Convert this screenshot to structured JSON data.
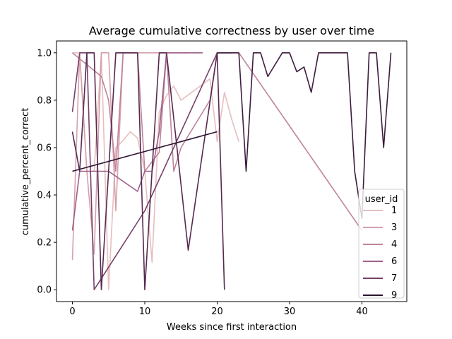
{
  "chart_data": {
    "type": "line",
    "title": "Average cumulative correctness by user over time",
    "xlabel": "Weeks since first interaction",
    "ylabel": "cumulative_percent_correct",
    "xlim": [
      -2.2,
      46.2
    ],
    "ylim": [
      -0.05,
      1.05
    ],
    "x_ticks": [
      0,
      10,
      20,
      30,
      40
    ],
    "y_ticks": [
      0.0,
      0.2,
      0.4,
      0.6,
      0.8,
      1.0
    ],
    "legend": {
      "title": "user_id",
      "placement": "lower-right"
    },
    "grid": false,
    "series": [
      {
        "name": "1",
        "color": "#e6bfbf",
        "points": [
          [
            0,
            1.0
          ],
          [
            1,
            1.0
          ],
          [
            2,
            0.5
          ],
          [
            3,
            0.5
          ],
          [
            4,
            1.0
          ],
          [
            5,
            0.0
          ],
          [
            6,
            0.6
          ],
          [
            7,
            0.63
          ],
          [
            8,
            0.667
          ],
          [
            9,
            0.64
          ],
          [
            10,
            0.5
          ],
          [
            11,
            0.115
          ],
          [
            12,
            0.75
          ],
          [
            13,
            0.82
          ],
          [
            14,
            0.86
          ],
          [
            15,
            0.8
          ],
          [
            19,
            0.89
          ],
          [
            20,
            0.625
          ],
          [
            21,
            0.833
          ],
          [
            22,
            0.72
          ],
          [
            23,
            0.625
          ]
        ]
      },
      {
        "name": "3",
        "color": "#d4a0ab",
        "points": [
          [
            0,
            0.125
          ],
          [
            1,
            1.0
          ],
          [
            2,
            0.5
          ],
          [
            3,
            0.15
          ],
          [
            4,
            1.0
          ],
          [
            5,
            1.0
          ],
          [
            6,
            0.333
          ],
          [
            7,
            1.0
          ],
          [
            8,
            1.0
          ],
          [
            14,
            1.0
          ],
          [
            16,
            1.0
          ]
        ]
      },
      {
        "name": "4",
        "color": "#bf839b",
        "points": [
          [
            0,
            1.0
          ],
          [
            4,
            0.9
          ],
          [
            5,
            0.8
          ],
          [
            6,
            0.5
          ],
          [
            7,
            1.0
          ],
          [
            8,
            1.0
          ],
          [
            9,
            1.0
          ],
          [
            10,
            0.5
          ],
          [
            12,
            0.58
          ],
          [
            13,
            1.0
          ],
          [
            14,
            0.5
          ],
          [
            15,
            0.6
          ],
          [
            19,
            0.8
          ],
          [
            20,
            1.0
          ],
          [
            23,
            1.0
          ],
          [
            40,
            0.25
          ]
        ]
      },
      {
        "name": "6",
        "color": "#9e6088",
        "points": [
          [
            0,
            0.25
          ],
          [
            1,
            0.5
          ],
          [
            2,
            0.5
          ],
          [
            3,
            0.5
          ],
          [
            4,
            0.5
          ],
          [
            5,
            0.5
          ],
          [
            9,
            0.415
          ],
          [
            10,
            0.5
          ],
          [
            11,
            0.5
          ],
          [
            12,
            0.667
          ],
          [
            13,
            1.0
          ],
          [
            14,
            1.0
          ],
          [
            18,
            1.0
          ]
        ]
      },
      {
        "name": "7",
        "color": "#76406a",
        "points": [
          [
            0,
            0.75
          ],
          [
            1,
            1.0
          ],
          [
            2,
            1.0
          ],
          [
            3,
            0.0
          ],
          [
            10,
            0.333
          ],
          [
            20,
            1.0
          ],
          [
            21,
            1.0
          ],
          [
            22,
            1.0
          ]
        ]
      },
      {
        "name": "",
        "color": "#56294f",
        "points": [
          [
            0,
            0.667
          ],
          [
            1,
            0.5
          ],
          [
            2,
            1.0
          ],
          [
            3,
            1.0
          ],
          [
            4,
            0.0
          ],
          [
            6,
            1.0
          ],
          [
            8,
            1.0
          ],
          [
            9,
            1.0
          ],
          [
            10,
            0.0
          ],
          [
            12,
            1.0
          ],
          [
            13,
            1.0
          ],
          [
            16,
            0.167
          ],
          [
            20,
            1.0
          ],
          [
            21,
            0.0
          ]
        ]
      },
      {
        "name": "",
        "color": "#3d1c3d",
        "points": [
          [
            20,
            1.0
          ],
          [
            22,
            1.0
          ],
          [
            23,
            1.0
          ],
          [
            24,
            0.5
          ],
          [
            25,
            1.0
          ],
          [
            26,
            1.0
          ],
          [
            27,
            0.9
          ],
          [
            29,
            1.0
          ],
          [
            30,
            1.0
          ],
          [
            31,
            0.92
          ],
          [
            32,
            0.94
          ],
          [
            33,
            0.833
          ],
          [
            34,
            1.0
          ],
          [
            38,
            1.0
          ],
          [
            39,
            0.5
          ],
          [
            40,
            0.3
          ],
          [
            41,
            1.0
          ],
          [
            42,
            1.0
          ],
          [
            43,
            0.6
          ],
          [
            44,
            1.0
          ]
        ]
      },
      {
        "name": "9",
        "color": "#2b1330",
        "points": [
          [
            0,
            0.5
          ],
          [
            20,
            0.667
          ]
        ]
      }
    ]
  }
}
